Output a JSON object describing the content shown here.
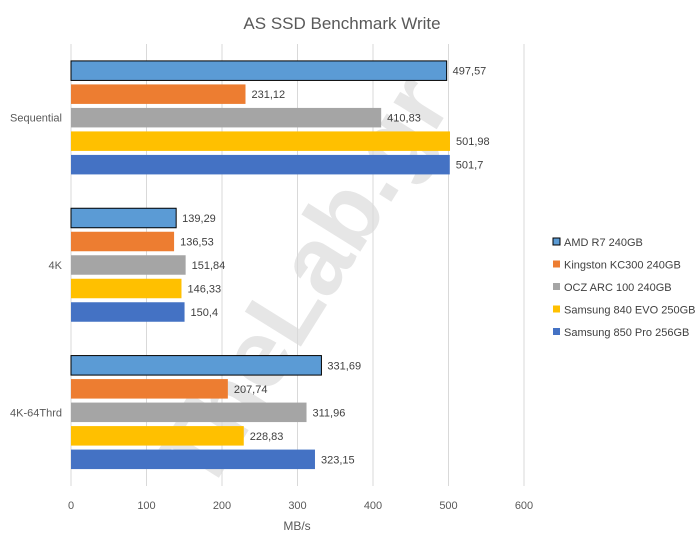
{
  "chart_data": {
    "type": "bar",
    "orientation": "horizontal",
    "title": "AS SSD Benchmark Write",
    "xlabel": "MB/s",
    "ylabel": "",
    "xlim": [
      0,
      600
    ],
    "ticks": [
      "0",
      "100",
      "200",
      "300",
      "400",
      "500",
      "600"
    ],
    "grid": true,
    "legend_position": "right",
    "categories": [
      "Sequential",
      "4K",
      "4K-64Thrd"
    ],
    "series": [
      {
        "name": "AMD R7 240GB",
        "color": "#5B9BD5",
        "outline": true,
        "values": [
          497.57,
          139.29,
          331.69
        ],
        "labels": [
          "497,57",
          "139,29",
          "331,69"
        ]
      },
      {
        "name": "Kingston KC300 240GB",
        "color": "#ED7D31",
        "outline": false,
        "values": [
          231.12,
          136.53,
          207.74
        ],
        "labels": [
          "231,12",
          "136,53",
          "207,74"
        ]
      },
      {
        "name": "OCZ ARC 100 240GB",
        "color": "#A5A5A5",
        "outline": false,
        "values": [
          410.83,
          151.84,
          311.96
        ],
        "labels": [
          "410,83",
          "151,84",
          "311,96"
        ]
      },
      {
        "name": "Samsung 840 EVO 250GB",
        "color": "#FFC000",
        "outline": false,
        "values": [
          501.98,
          146.33,
          228.83
        ],
        "labels": [
          "501,98",
          "146,33",
          "228,83"
        ]
      },
      {
        "name": "Samsung 850 Pro 256GB",
        "color": "#4472C4",
        "outline": false,
        "values": [
          501.7,
          150.4,
          323.15
        ],
        "labels": [
          "501,7",
          "150,4",
          "323,15"
        ]
      }
    ],
    "watermark": "TheLab.gr"
  }
}
